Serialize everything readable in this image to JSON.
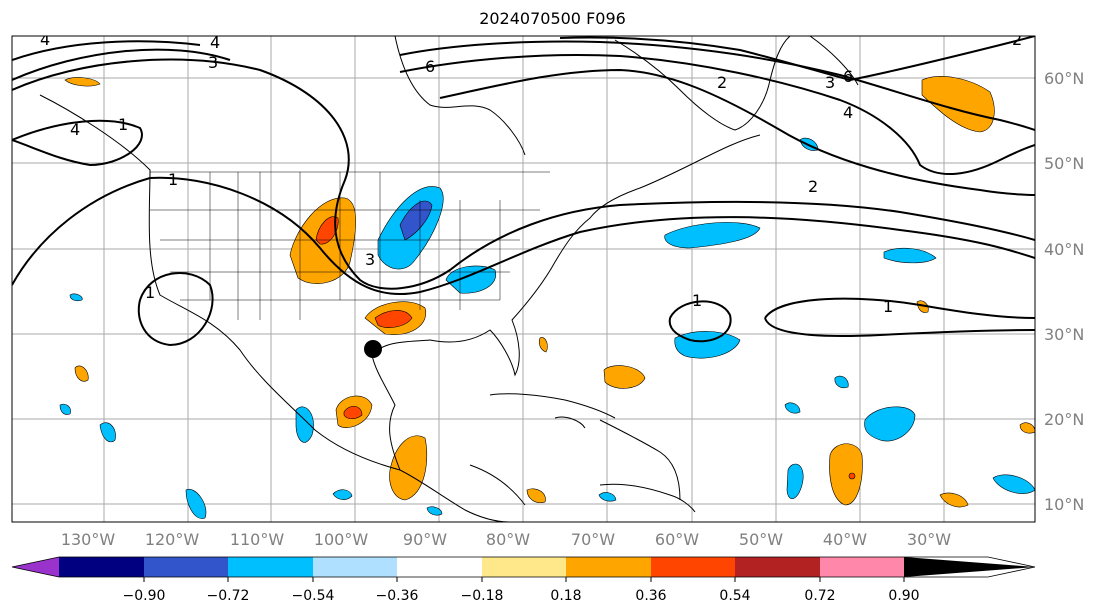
{
  "title": "2024070500 F096",
  "map": {
    "lon_labels": [
      "130°W",
      "120°W",
      "110°W",
      "100°W",
      "90°W",
      "80°W",
      "70°W",
      "60°W",
      "50°W",
      "40°W",
      "30°W"
    ],
    "lat_labels": [
      "60°N",
      "50°N",
      "40°N",
      "30°N",
      "20°N",
      "10°N"
    ],
    "contour_labels": [
      "4",
      "4",
      "4",
      "3",
      "6",
      "2",
      "3",
      "6",
      "1",
      "1",
      "2",
      "3",
      "4",
      "1",
      "1",
      "1",
      "2"
    ]
  },
  "colorbar": {
    "ticks": [
      "−0.90",
      "−0.72",
      "−0.54",
      "−0.36",
      "−0.18",
      "0.18",
      "0.36",
      "0.54",
      "0.72",
      "0.90"
    ],
    "colors": [
      "#9933cc",
      "#000080",
      "#3355cc",
      "#00bfff",
      "#b0e0ff",
      "#ffffff",
      "#ffe88a",
      "#ffa500",
      "#ff4500",
      "#b22222",
      "#ff88aa"
    ]
  }
}
